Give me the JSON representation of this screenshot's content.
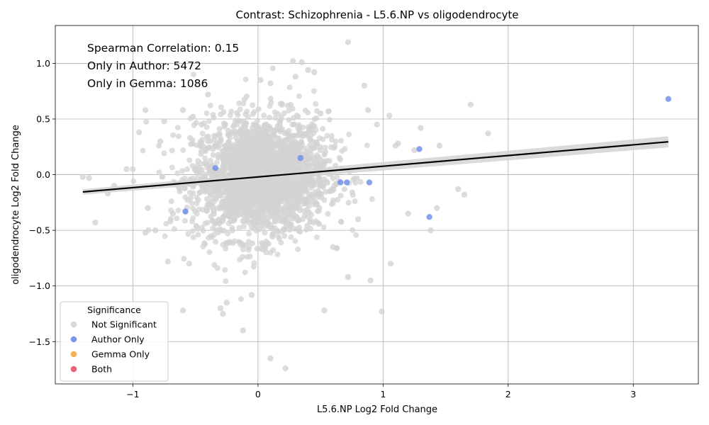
{
  "chart_data": {
    "type": "scatter",
    "title": "Contrast: Schizophrenia - L5.6.NP vs oligodendrocyte",
    "xlabel": "L5.6.NP Log2 Fold Change",
    "ylabel": "oligodendrocyte Log2 Fold Change",
    "xlim": [
      -1.62,
      3.52
    ],
    "ylim": [
      -1.88,
      1.34
    ],
    "x_ticks": [
      -1,
      0,
      1,
      2,
      3
    ],
    "y_ticks": [
      -1.5,
      -1.0,
      -0.5,
      0.0,
      0.5,
      1.0
    ],
    "x_tick_labels": [
      "−1",
      "0",
      "1",
      "2",
      "3"
    ],
    "y_tick_labels": [
      "−1.5",
      "−1.0",
      "−0.5",
      "0.0",
      "0.5",
      "1.0"
    ],
    "grid": true,
    "annotations": [
      "Spearman Correlation: 0.15",
      "Only in Author: 5472",
      "Only in Gemma: 1086"
    ],
    "legend": {
      "title": "Significance",
      "position": "lower-left",
      "entries": [
        {
          "label": "Not Significant",
          "color": "#d3d3d3"
        },
        {
          "label": "Author Only",
          "color": "#6a8ce8"
        },
        {
          "label": "Gemma Only",
          "color": "#f2a444"
        },
        {
          "label": "Both",
          "color": "#e8506e"
        }
      ]
    },
    "series": [
      {
        "name": "Not Significant",
        "color": "#d3d3d3",
        "cloud_center": [
          0.02,
          -0.02
        ],
        "cloud_spread": [
          0.27,
          0.27
        ],
        "x": [
          -1.4,
          -1.35,
          -1.3,
          -1.2,
          -1.15,
          -1.05,
          -1.0,
          -0.95,
          -0.9,
          -0.9,
          -0.88,
          -0.82,
          -0.78,
          -0.75,
          -0.72,
          -0.7,
          -0.68,
          -0.6,
          -0.6,
          -0.55,
          -0.52,
          -0.45,
          -0.4,
          -0.3,
          -0.28,
          -0.25,
          -0.12,
          -0.05,
          0.02,
          0.1,
          0.1,
          0.22,
          0.28,
          0.3,
          0.35,
          0.4,
          0.45,
          0.5,
          0.53,
          0.6,
          0.72,
          0.85,
          0.88,
          0.9,
          0.95,
          0.99,
          1.05,
          1.06,
          1.1,
          1.12,
          1.2,
          1.25,
          1.3,
          1.38,
          1.43,
          1.45,
          1.6,
          1.65,
          1.7,
          1.84,
          0.72,
          0.32,
          0.2,
          0.46,
          0.8
        ],
        "y": [
          -0.02,
          -0.03,
          -0.43,
          -0.17,
          -0.1,
          0.05,
          0.05,
          0.38,
          0.58,
          -0.52,
          -0.3,
          -0.5,
          0.3,
          0.48,
          -0.78,
          -0.42,
          -0.35,
          0.58,
          -1.22,
          -0.8,
          0.52,
          0.45,
          0.72,
          -1.2,
          -1.25,
          -1.15,
          -1.4,
          -1.08,
          0.85,
          0.82,
          -1.65,
          -1.74,
          1.02,
          0.88,
          1.01,
          0.94,
          0.92,
          0.55,
          -1.22,
          -0.65,
          1.19,
          0.8,
          0.58,
          -0.95,
          0.45,
          -1.23,
          0.53,
          -0.8,
          0.26,
          0.28,
          -0.35,
          0.22,
          0.42,
          -0.5,
          -0.3,
          0.26,
          -0.13,
          -0.18,
          0.63,
          0.37,
          -0.92,
          -0.4,
          0.18,
          -0.25,
          -0.4
        ]
      },
      {
        "name": "Author Only",
        "color": "#6a8ce8",
        "x": [
          3.28,
          1.29,
          1.37,
          0.66,
          0.71,
          0.89,
          -0.58,
          0.34,
          -0.34
        ],
        "y": [
          0.68,
          0.23,
          -0.38,
          -0.07,
          -0.07,
          -0.07,
          -0.33,
          0.15,
          0.06
        ]
      },
      {
        "name": "Gemma Only",
        "color": "#f2a444",
        "x": [],
        "y": []
      },
      {
        "name": "Both",
        "color": "#e8506e",
        "x": [],
        "y": []
      }
    ],
    "regression_line": {
      "color": "#000000",
      "x": [
        -1.4,
        3.28
      ],
      "y": [
        -0.155,
        0.295
      ],
      "ci_band_color": "#d3d3d3",
      "ci_lower": [
        -0.18,
        0.245
      ],
      "ci_upper": [
        -0.13,
        0.345
      ]
    }
  }
}
